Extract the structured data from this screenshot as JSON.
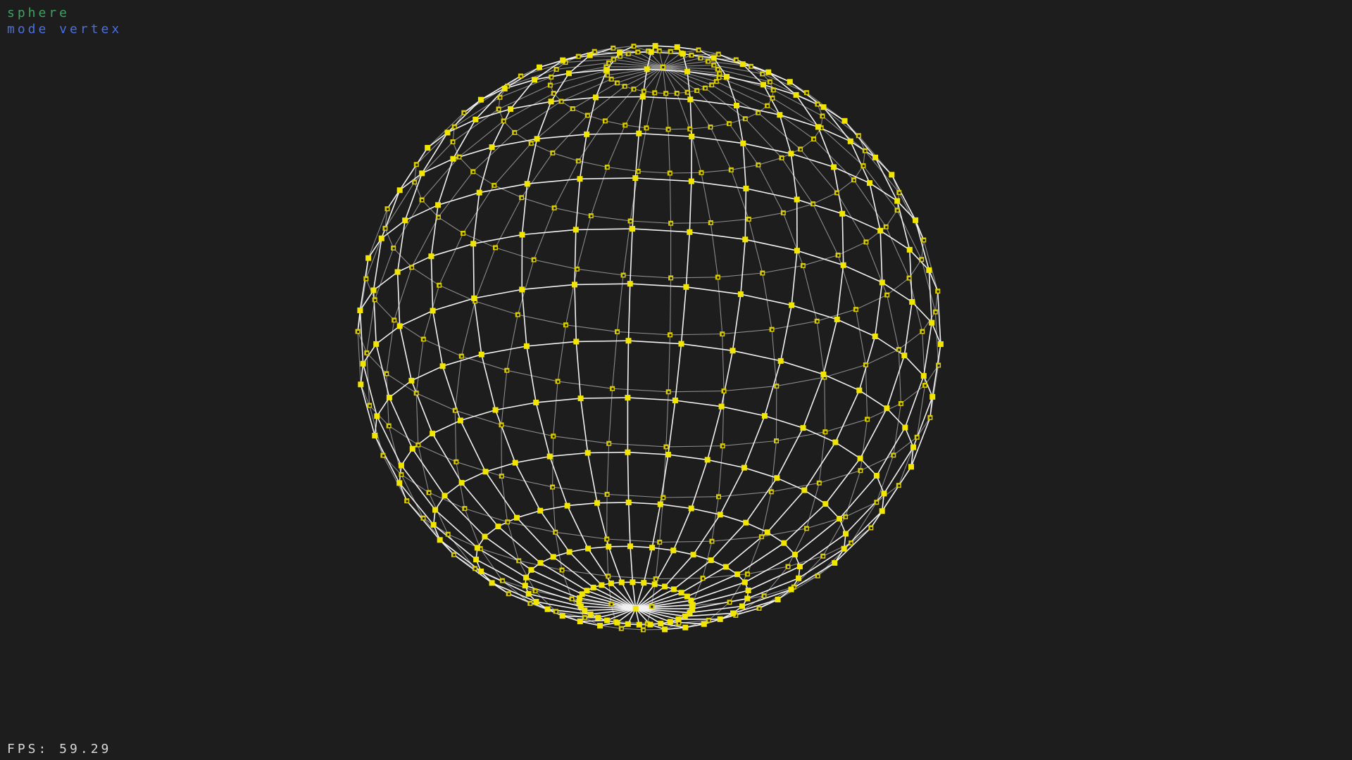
{
  "hud": {
    "mesh_name": "sphere",
    "mode_text": "mode vertex",
    "fps_text": "FPS: 59.29"
  },
  "colors": {
    "background": "#1d1d1d",
    "mesh_name": "#3fa35f",
    "mode_text": "#4a6fe0",
    "fps_text": "#d8d8d8",
    "wire_front": "#f2f2f2",
    "wire_back": "#8a8a8a",
    "vertex": "#f2e600",
    "vertex_back": "#d9cc00"
  },
  "viewport": {
    "object": "sphere",
    "mode": "vertex",
    "render": "wireframe",
    "meridians": 32,
    "rings": 16
  }
}
